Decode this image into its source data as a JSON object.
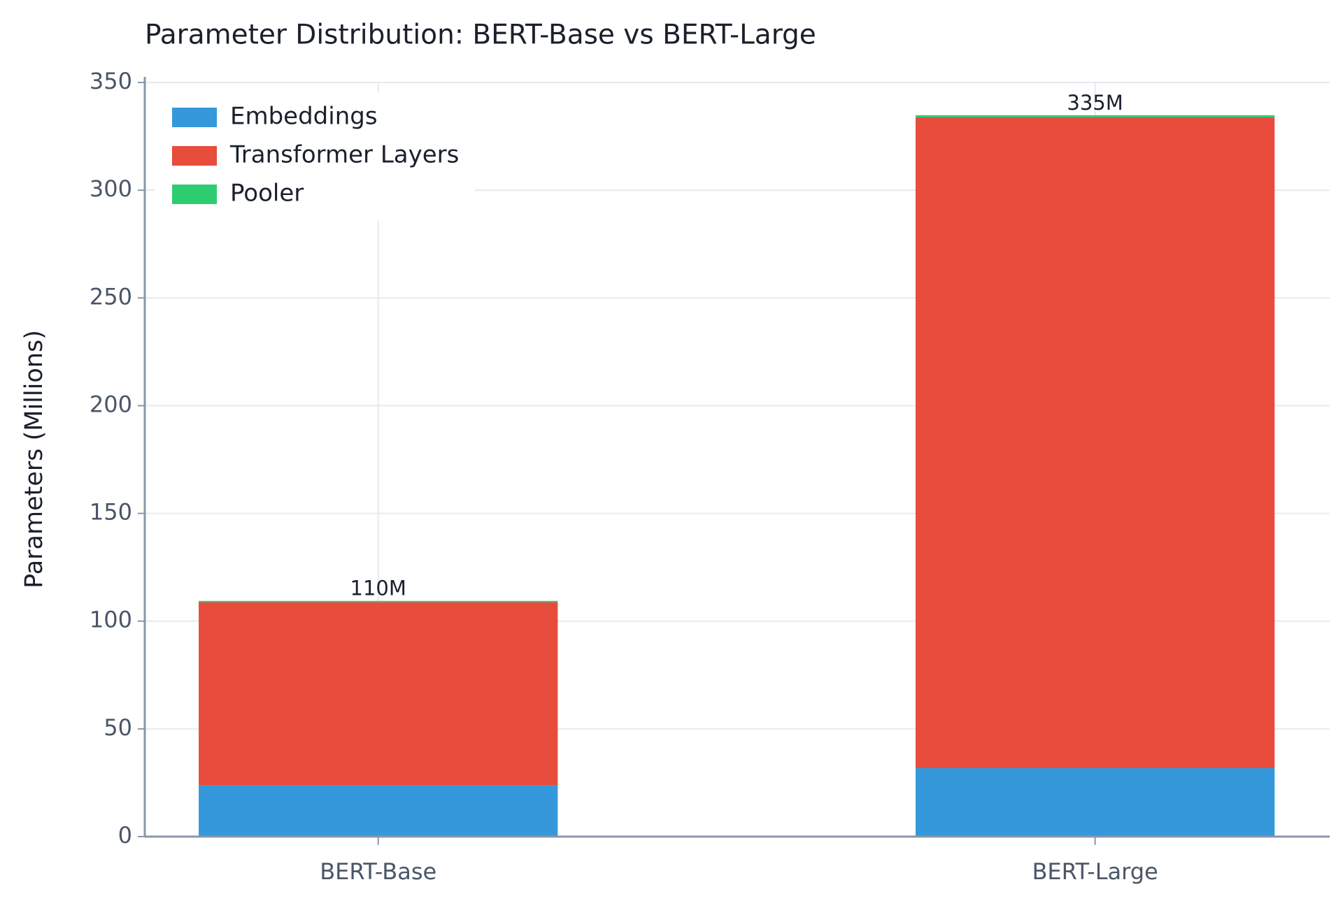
{
  "chart_data": {
    "type": "stacked_bar",
    "title": "Parameter Distribution: BERT-Base vs BERT-Large",
    "y_label": "Parameters (Millions)",
    "categories": [
      "BERT-Base",
      "BERT-Large"
    ],
    "series": [
      {
        "name": "Embeddings",
        "color": "#3498db",
        "values": [
          23.8,
          31.8
        ]
      },
      {
        "name": "Transformer Layers",
        "color": "#e74c3c",
        "values": [
          85,
          302
        ]
      },
      {
        "name": "Pooler",
        "color": "#2ecc71",
        "values": [
          0.6,
          1.0
        ]
      }
    ],
    "annotations": [
      "110M",
      "335M"
    ],
    "ylim": [
      0,
      350
    ],
    "yticks": [
      0,
      50,
      100,
      150,
      200,
      250,
      300,
      350
    ],
    "grid": true,
    "legend": "upper left"
  }
}
